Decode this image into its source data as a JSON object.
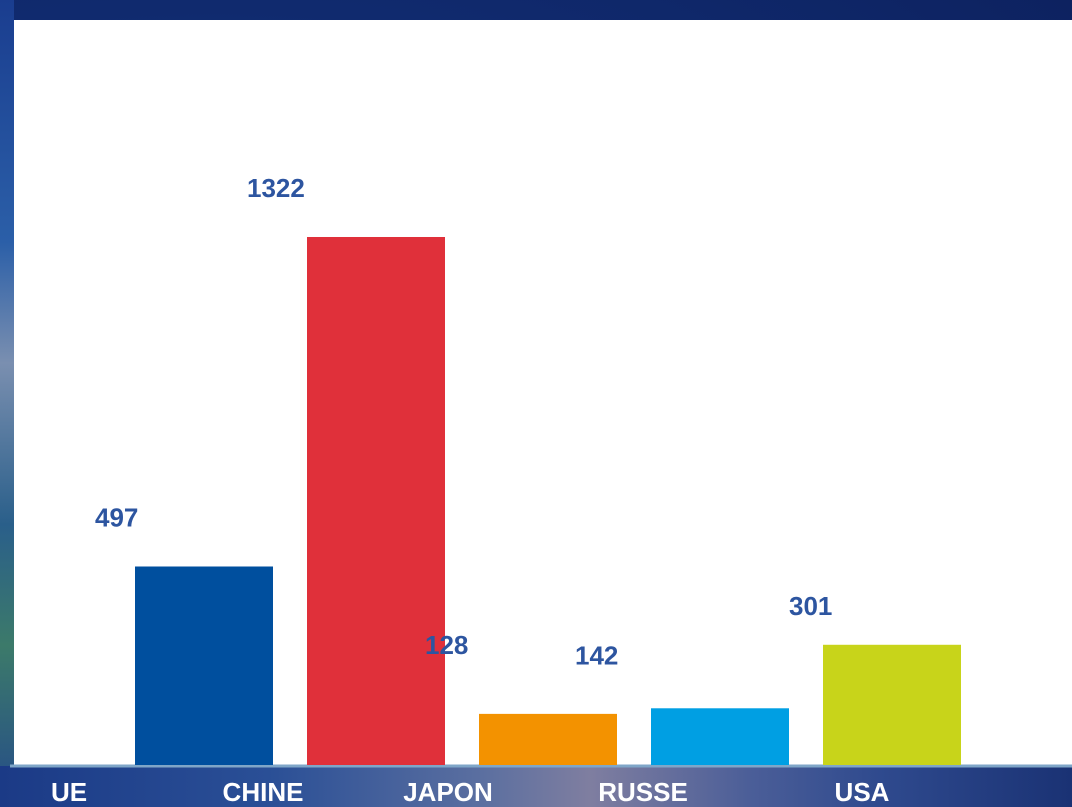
{
  "chart_data": {
    "type": "bar",
    "categories": [
      "UE",
      "CHINE",
      "JAPON",
      "RUSSE",
      "USA"
    ],
    "values": [
      497,
      1322,
      128,
      142,
      301
    ],
    "colors": [
      "#004f9e",
      "#e0303a",
      "#f39200",
      "#009fe3",
      "#c8d41a"
    ],
    "value_label_color": "#2d55a0",
    "category_label_color": "#ffffff",
    "title": "",
    "xlabel": "",
    "ylabel": "",
    "ylim": [
      0,
      1600
    ],
    "grid": false,
    "legend": "none"
  }
}
